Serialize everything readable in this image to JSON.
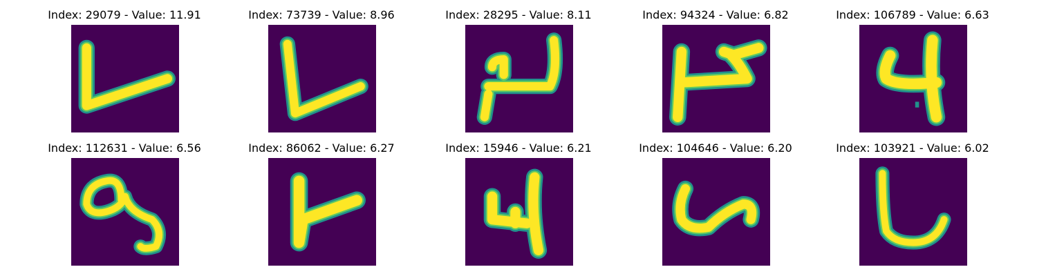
{
  "colors": {
    "background": "#440154",
    "stroke_edge": "#21918c",
    "stroke_mid": "#5ec962",
    "stroke_core": "#fde725"
  },
  "panels": [
    {
      "title": "Index: 29079 - Value: 11.91",
      "glyph": "L-shape"
    },
    {
      "title": "Index: 73739 - Value: 8.96",
      "glyph": "L-shape"
    },
    {
      "title": "Index: 28295 - Value: 8.11",
      "glyph": "squiggle"
    },
    {
      "title": "Index: 94324 - Value: 6.82",
      "glyph": "squiggle"
    },
    {
      "title": "Index: 106789 - Value: 6.63",
      "glyph": "four"
    },
    {
      "title": "Index: 112631 - Value: 6.56",
      "glyph": "loop"
    },
    {
      "title": "Index: 86062 - Value: 6.27",
      "glyph": "L-shape"
    },
    {
      "title": "Index: 15946 - Value: 6.21",
      "glyph": "four"
    },
    {
      "title": "Index: 104646 - Value: 6.20",
      "glyph": "u-shape"
    },
    {
      "title": "Index: 103921 - Value: 6.02",
      "glyph": "u-shape"
    }
  ]
}
